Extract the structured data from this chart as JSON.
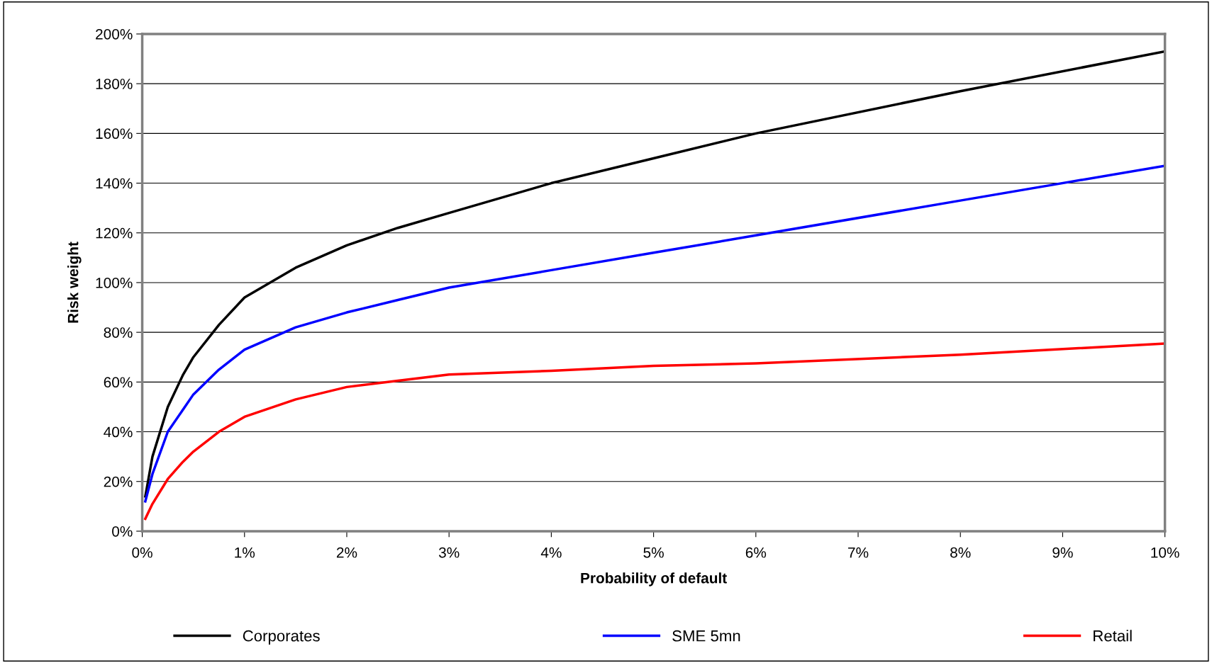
{
  "chart_data": {
    "type": "line",
    "xlabel": "Probability of default",
    "ylabel": "Risk weight",
    "x": [
      0.03,
      0.1,
      0.25,
      0.4,
      0.5,
      0.75,
      1,
      1.5,
      2,
      2.5,
      3,
      4,
      5,
      6,
      8,
      10
    ],
    "series": [
      {
        "name": "Corporates",
        "color": "#000000",
        "values": [
          14,
          30,
          50,
          63,
          70,
          83,
          94,
          106,
          115,
          122,
          128,
          140,
          150,
          160,
          177,
          193
        ]
      },
      {
        "name": "SME 5mn",
        "color": "#0000ff",
        "values": [
          12,
          23,
          40,
          49,
          55,
          65,
          73,
          82,
          88,
          93,
          98,
          105,
          112,
          119,
          133,
          147
        ]
      },
      {
        "name": "Retail",
        "color": "#ff0000",
        "values": [
          5,
          11,
          21,
          28,
          32,
          40,
          46,
          53,
          58,
          60.5,
          63,
          64.5,
          66.5,
          67.5,
          71,
          75.5
        ]
      }
    ],
    "xlim": [
      0,
      10
    ],
    "ylim": [
      0,
      200
    ],
    "xticks": [
      {
        "value": 0,
        "label": "0%"
      },
      {
        "value": 1,
        "label": "1%"
      },
      {
        "value": 2,
        "label": "2%"
      },
      {
        "value": 3,
        "label": "3%"
      },
      {
        "value": 4,
        "label": "4%"
      },
      {
        "value": 5,
        "label": "5%"
      },
      {
        "value": 6,
        "label": "6%"
      },
      {
        "value": 7,
        "label": "7%"
      },
      {
        "value": 8,
        "label": "8%"
      },
      {
        "value": 9,
        "label": "9%"
      },
      {
        "value": 10,
        "label": "10%"
      }
    ],
    "yticks": [
      {
        "value": 0,
        "label": "0%"
      },
      {
        "value": 20,
        "label": "20%"
      },
      {
        "value": 40,
        "label": "40%"
      },
      {
        "value": 60,
        "label": "60%"
      },
      {
        "value": 80,
        "label": "80%"
      },
      {
        "value": 100,
        "label": "100%"
      },
      {
        "value": 120,
        "label": "120%"
      },
      {
        "value": 140,
        "label": "140%"
      },
      {
        "value": 160,
        "label": "160%"
      },
      {
        "value": 180,
        "label": "180%"
      },
      {
        "value": 200,
        "label": "200%"
      }
    ],
    "grid": "y",
    "legend": "bottom",
    "marker": "none",
    "line_style": "solid"
  }
}
